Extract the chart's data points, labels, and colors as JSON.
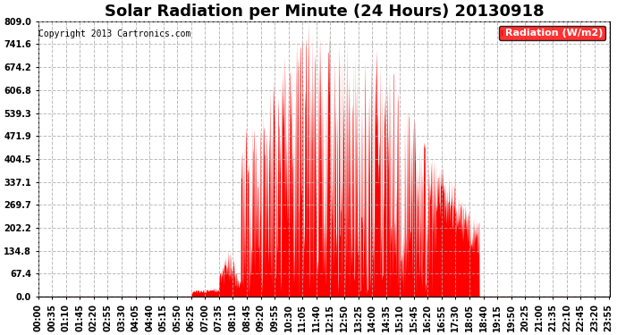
{
  "title": "Solar Radiation per Minute (24 Hours) 20130918",
  "copyright_text": "Copyright 2013 Cartronics.com",
  "legend_label": "Radiation (W/m2)",
  "yticks": [
    0.0,
    67.4,
    134.8,
    202.2,
    269.7,
    337.1,
    404.5,
    471.9,
    539.3,
    606.8,
    674.2,
    741.6,
    809.0
  ],
  "ymax": 809.0,
  "ymin": 0.0,
  "fill_color": "#FF0000",
  "line_color": "#FF0000",
  "grid_color": "#AAAAAA",
  "bg_color": "#FFFFFF",
  "legend_bg": "#FF0000",
  "legend_text_color": "#FFFFFF",
  "title_fontsize": 13,
  "copyright_fontsize": 7,
  "tick_fontsize": 7
}
